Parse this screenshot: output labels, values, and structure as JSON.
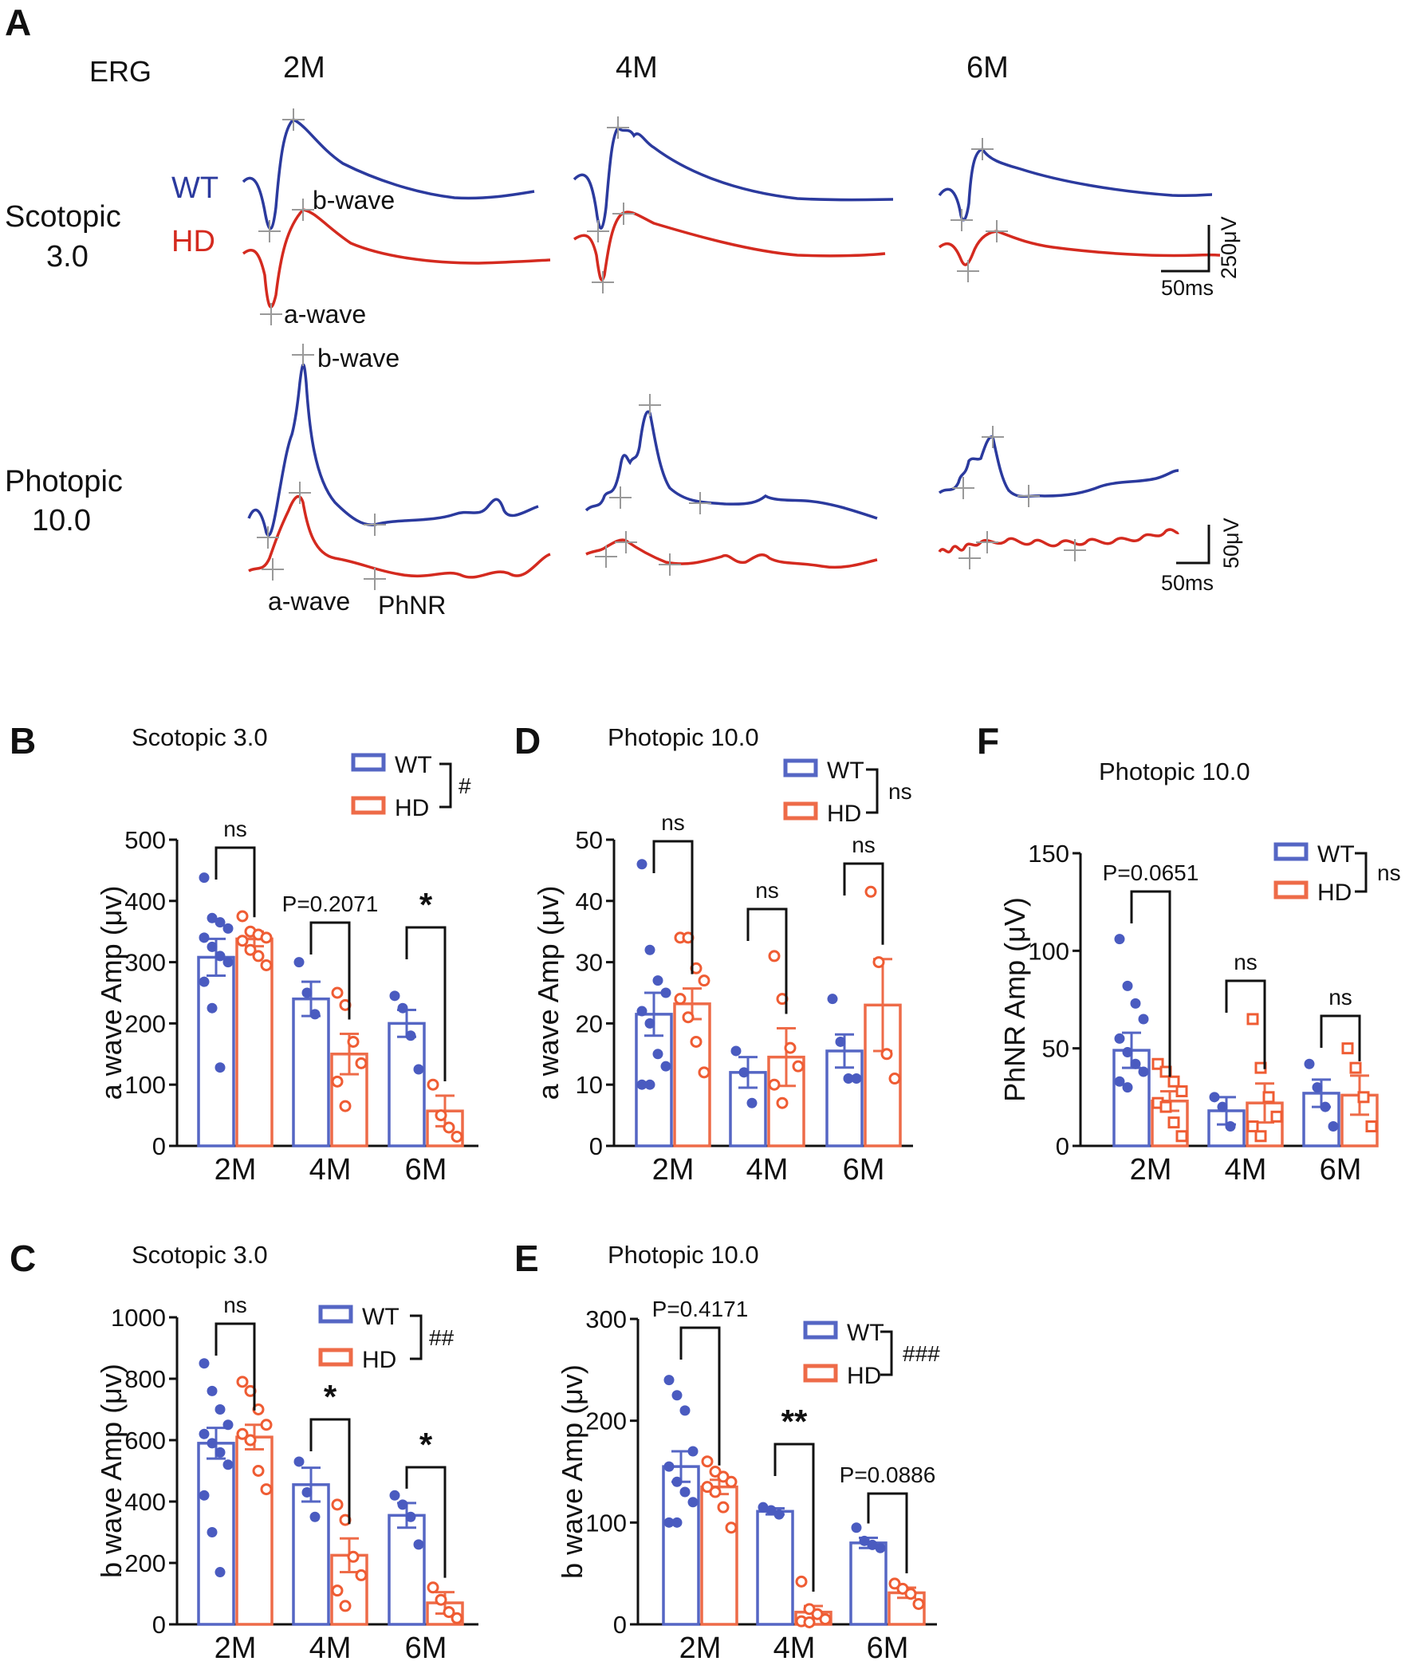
{
  "colors": {
    "wt": "#2b3a9e",
    "hd": "#d42a1f",
    "wt_bar": "#5566c4",
    "hd_bar": "#ee6b48",
    "ink": "#111111"
  },
  "panel_a": {
    "letter": "A",
    "erg_label": "ERG",
    "ages": [
      "2M",
      "4M",
      "6M"
    ],
    "rows": [
      "Scotopic\n3.0",
      "Photopic\n10.0"
    ],
    "row1_line1": "Scotopic",
    "row1_line2": "3.0",
    "row2_line1": "Photopic",
    "row2_line2": "10.0",
    "wt_label": "WT",
    "hd_label": "HD",
    "b_wave": "b-wave",
    "a_wave": "a-wave",
    "phnr": "PhNR",
    "scale_top_v": "250μV",
    "scale_top_t": "50ms",
    "scale_bottom_v": "50μV",
    "scale_bottom_t": "50ms"
  },
  "chart_data": [
    {
      "panel": "B",
      "type": "bar",
      "title": "Scotopic 3.0",
      "ylabel": "a wave Amp (μv)",
      "ylim": [
        0,
        500
      ],
      "yticks": [
        0,
        100,
        200,
        300,
        400,
        500
      ],
      "categories": [
        "2M",
        "4M",
        "6M"
      ],
      "legend": {
        "wt": "WT",
        "hd": "HD",
        "sig": "#"
      },
      "series": [
        {
          "name": "WT",
          "values": [
            308,
            240,
            200
          ],
          "sem": [
            30,
            28,
            22
          ],
          "points": [
            [
              438,
              372,
              365,
              355,
              340,
              325,
              310,
              300,
              268,
              225,
              128
            ],
            [
              300,
              250,
              215
            ],
            [
              245,
              225,
              180,
              125
            ]
          ]
        },
        {
          "name": "HD",
          "values": [
            338,
            150,
            57
          ],
          "sem": [
            12,
            33,
            25
          ],
          "points": [
            [
              375,
              350,
              345,
              340,
              335,
              320,
              310,
              295
            ],
            [
              250,
              230,
              170,
              135,
              105,
              65
            ],
            [
              100,
              50,
              30,
              15
            ]
          ]
        }
      ],
      "annotations": [
        "ns",
        "P=0.2071",
        "*"
      ]
    },
    {
      "panel": "C",
      "type": "bar",
      "title": "Scotopic 3.0",
      "ylabel": "b wave Amp (μv)",
      "ylim": [
        0,
        1000
      ],
      "yticks": [
        0,
        200,
        400,
        600,
        800,
        1000
      ],
      "categories": [
        "2M",
        "4M",
        "6M"
      ],
      "legend": {
        "wt": "WT",
        "hd": "HD",
        "sig": "##"
      },
      "series": [
        {
          "name": "WT",
          "values": [
            590,
            455,
            355
          ],
          "sem": [
            50,
            55,
            40
          ],
          "points": [
            [
              850,
              760,
              700,
              650,
              620,
              590,
              560,
              520,
              420,
              300,
              170
            ],
            [
              530,
              430,
              350
            ],
            [
              420,
              390,
              350,
              260
            ]
          ]
        },
        {
          "name": "HD",
          "values": [
            610,
            225,
            70
          ],
          "sem": [
            40,
            55,
            35
          ],
          "points": [
            [
              790,
              760,
              700,
              650,
              620,
              600,
              500,
              440
            ],
            [
              390,
              340,
              220,
              160,
              110,
              60
            ],
            [
              120,
              80,
              40,
              20
            ]
          ]
        }
      ],
      "annotations": [
        "ns",
        "*",
        "*"
      ]
    },
    {
      "panel": "D",
      "type": "bar",
      "title": "Photopic 10.0",
      "ylabel": "a wave Amp (μv)",
      "ylim": [
        0,
        50
      ],
      "yticks": [
        0,
        10,
        20,
        30,
        40,
        50
      ],
      "categories": [
        "2M",
        "4M",
        "6M"
      ],
      "legend": {
        "wt": "WT",
        "hd": "HD",
        "sig": "ns"
      },
      "series": [
        {
          "name": "WT",
          "values": [
            21.5,
            12,
            15.5
          ],
          "sem": [
            3.5,
            2.5,
            2.7
          ],
          "points": [
            [
              46,
              32,
              27,
              25,
              22,
              20,
              15,
              13,
              10,
              10
            ],
            [
              15.5,
              12,
              7
            ],
            [
              24,
              17,
              11,
              11
            ]
          ]
        },
        {
          "name": "HD",
          "values": [
            23.2,
            14.5,
            23
          ],
          "sem": [
            2.5,
            4.7,
            7.5
          ],
          "points": [
            [
              34,
              34,
              29,
              27,
              24,
              21,
              17,
              12
            ],
            [
              31,
              24,
              16,
              13,
              10,
              7
            ],
            [
              41.5,
              30,
              15,
              11
            ]
          ]
        }
      ],
      "annotations": [
        "ns",
        "ns",
        "ns"
      ]
    },
    {
      "panel": "E",
      "type": "bar",
      "title": "Photopic 10.0",
      "ylabel": "b wave Amp (μv)",
      "ylim": [
        0,
        300
      ],
      "yticks": [
        0,
        100,
        200,
        300
      ],
      "categories": [
        "2M",
        "4M",
        "6M"
      ],
      "legend": {
        "wt": "WT",
        "hd": "HD",
        "sig": "###"
      },
      "series": [
        {
          "name": "WT",
          "values": [
            155,
            111,
            80
          ],
          "sem": [
            15,
            3,
            5
          ],
          "points": [
            [
              240,
              225,
              210,
              170,
              155,
              140,
              130,
              120,
              100,
              100
            ],
            [
              115,
              112,
              108
            ],
            [
              95,
              82,
              78,
              75
            ]
          ]
        },
        {
          "name": "HD",
          "values": [
            135,
            12,
            31
          ],
          "sem": [
            7,
            6,
            5
          ],
          "points": [
            [
              160,
              150,
              145,
              140,
              135,
              130,
              115,
              95
            ],
            [
              42,
              15,
              10,
              5,
              3,
              2
            ],
            [
              40,
              35,
              30,
              20
            ]
          ]
        }
      ],
      "annotations": [
        "P=0.4171",
        "**",
        "P=0.0886"
      ]
    },
    {
      "panel": "F",
      "type": "bar",
      "title": "Photopic 10.0",
      "ylabel": "PhNR Amp (μV)",
      "ylim": [
        0,
        150
      ],
      "yticks": [
        0,
        50,
        100,
        150
      ],
      "categories": [
        "2M",
        "4M",
        "6M"
      ],
      "legend": {
        "wt": "WT",
        "hd": "HD",
        "sig": "ns"
      },
      "series": [
        {
          "name": "WT",
          "values": [
            49,
            18,
            27
          ],
          "sem": [
            9,
            7,
            7
          ],
          "points": [
            [
              106,
              82,
              73,
              65,
              55,
              48,
              42,
              38,
              33,
              30
            ],
            [
              25,
              20,
              10
            ],
            [
              42,
              30,
              20,
              10
            ]
          ]
        },
        {
          "name": "HD",
          "values": [
            23,
            22,
            26
          ],
          "sem": [
            5,
            10,
            10
          ],
          "points": [
            [
              42,
              38,
              33,
              28,
              22,
              20,
              12,
              5
            ],
            [
              65,
              40,
              25,
              15,
              10,
              5
            ],
            [
              50,
              40,
              25,
              10
            ]
          ]
        }
      ],
      "annotations": [
        "P=0.0651",
        "ns",
        "ns"
      ]
    }
  ]
}
